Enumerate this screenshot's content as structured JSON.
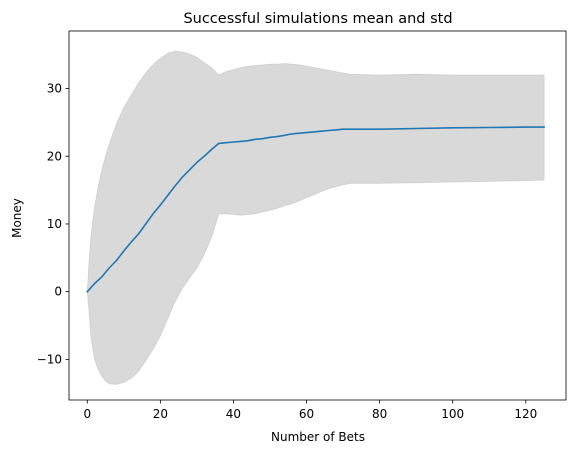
{
  "chart_data": {
    "type": "area",
    "title": "Successful simulations mean and std",
    "xlabel": "Number of Bets",
    "ylabel": "Money",
    "xlim": [
      -5,
      131
    ],
    "ylim": [
      -16,
      38.5
    ],
    "xticks": [
      0,
      20,
      40,
      60,
      80,
      100,
      120
    ],
    "xtick_labels": [
      "0",
      "20",
      "40",
      "60",
      "80",
      "100",
      "120"
    ],
    "yticks": [
      -10,
      0,
      10,
      20,
      30
    ],
    "ytick_labels": [
      "−10",
      "0",
      "10",
      "20",
      "30"
    ],
    "grid": false,
    "legend": "none",
    "colors": {
      "mean": "#1f77b4",
      "band": "#bfbfbf"
    },
    "series": [
      {
        "kind": "line",
        "x": [
          0,
          2,
          4,
          6,
          8,
          10,
          12,
          14,
          16,
          18,
          20,
          22,
          24,
          26,
          28,
          30,
          32,
          34,
          36,
          38,
          40,
          42,
          44,
          46,
          48,
          50,
          52,
          54,
          56,
          58,
          60,
          62,
          64,
          66,
          68,
          70,
          72,
          80,
          90,
          100,
          110,
          120,
          125
        ],
        "y": [
          0,
          1.2,
          2.2,
          3.5,
          4.6,
          6.0,
          7.3,
          8.5,
          10.0,
          11.5,
          12.8,
          14.2,
          15.6,
          16.9,
          18.0,
          19.1,
          20.0,
          21.0,
          21.9,
          22.0,
          22.1,
          22.2,
          22.3,
          22.5,
          22.6,
          22.8,
          22.9,
          23.1,
          23.3,
          23.4,
          23.5,
          23.6,
          23.7,
          23.8,
          23.9,
          24.0,
          24.0,
          24.0,
          24.1,
          24.2,
          24.25,
          24.3,
          24.3
        ]
      },
      {
        "kind": "band",
        "x": [
          0,
          0.5,
          1,
          1.5,
          2,
          3,
          4,
          5,
          6,
          8,
          10,
          12,
          14,
          16,
          18,
          20,
          22,
          24,
          26,
          28,
          30,
          32,
          34,
          36,
          38,
          40,
          42,
          44,
          46,
          48,
          50,
          52,
          54,
          56,
          58,
          60,
          62,
          64,
          66,
          68,
          70,
          72,
          80,
          90,
          100,
          110,
          120,
          125
        ],
        "upper": [
          0,
          4.5,
          8.0,
          10.5,
          12.5,
          15.5,
          18.0,
          20.0,
          21.8,
          24.8,
          27.2,
          29.0,
          30.8,
          32.3,
          33.5,
          34.5,
          35.2,
          35.5,
          35.4,
          35.1,
          34.6,
          33.8,
          33.1,
          32.0,
          32.5,
          32.8,
          33.1,
          33.3,
          33.4,
          33.5,
          33.6,
          33.6,
          33.7,
          33.6,
          33.5,
          33.3,
          33.1,
          32.9,
          32.7,
          32.5,
          32.3,
          32.1,
          32.0,
          32.1,
          32.0,
          32.0,
          32.0,
          32.0
        ],
        "lower": [
          0,
          -3.0,
          -6.5,
          -8.5,
          -10.0,
          -11.5,
          -12.5,
          -13.2,
          -13.6,
          -13.7,
          -13.4,
          -12.8,
          -11.8,
          -10.2,
          -8.5,
          -6.5,
          -4.0,
          -1.5,
          0.5,
          2.0,
          3.5,
          5.5,
          8.0,
          11.5,
          11.5,
          11.4,
          11.3,
          11.4,
          11.5,
          11.8,
          12.0,
          12.3,
          12.7,
          13.0,
          13.4,
          13.9,
          14.3,
          14.8,
          15.2,
          15.5,
          15.8,
          16.0,
          16.0,
          16.1,
          16.2,
          16.3,
          16.4,
          16.5
        ]
      }
    ]
  }
}
